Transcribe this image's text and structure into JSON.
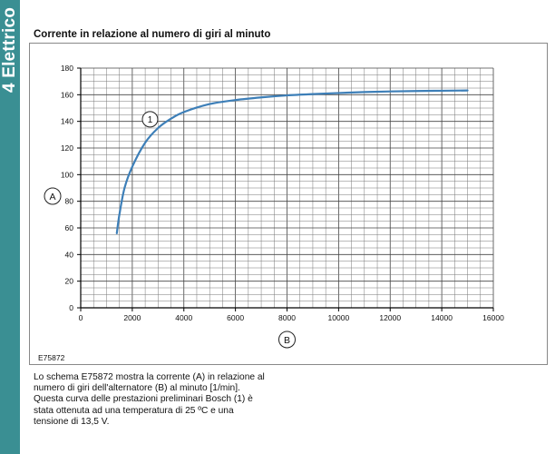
{
  "side_tab": {
    "label": "4 Elettrico",
    "color": "#3a8f93"
  },
  "title": "Corrente in relazione al numero di giri al minuto",
  "figure_id": "E75872",
  "caption": "Lo schema E75872 mostra la corrente (A) in relazione al numero di giri dell'alternatore (B) al minuto [1/min]. Questa curva delle prestazioni preliminari Bosch (1) è stata ottenuta ad una temperatura di 25 ºC e una tensione di 13,5 V.",
  "chart_data": {
    "type": "line",
    "xlabel": "B",
    "ylabel": "A",
    "xlim": [
      0,
      16000
    ],
    "ylim": [
      0,
      180
    ],
    "x_ticks": [
      0,
      2000,
      4000,
      6000,
      8000,
      10000,
      12000,
      14000,
      16000
    ],
    "y_ticks": [
      0,
      20,
      40,
      60,
      80,
      100,
      120,
      140,
      160,
      180
    ],
    "grid": true,
    "series": [
      {
        "name": "1",
        "color": "#3d7fb8",
        "x": [
          1400,
          1500,
          1700,
          2000,
          2500,
          3000,
          3500,
          4000,
          5000,
          6000,
          7000,
          8000,
          9000,
          10000,
          11000,
          12000,
          13000,
          14000,
          15000
        ],
        "y": [
          56,
          70,
          90,
          106,
          124,
          135,
          142,
          147,
          153,
          156,
          158,
          159.5,
          160.5,
          161.3,
          162,
          162.5,
          162.8,
          163,
          163.2
        ]
      }
    ],
    "annotations": [
      {
        "label": "1",
        "x": 2900,
        "y": 147
      }
    ]
  }
}
